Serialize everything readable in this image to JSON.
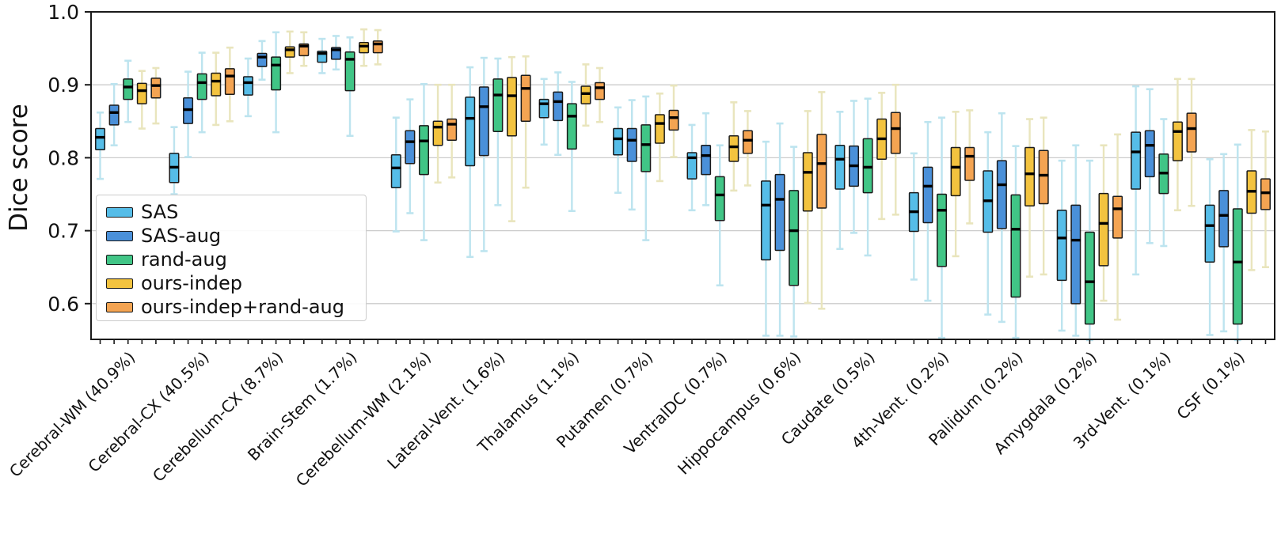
{
  "chart_data": {
    "type": "boxplot",
    "title": "",
    "ylabel": "Dice score",
    "xlabel": "",
    "ylim": [
      0.551,
      1.0
    ],
    "yticks": [
      {
        "label": "1.0",
        "value": 1.0
      },
      {
        "label": "0.9",
        "value": 0.9
      },
      {
        "label": "0.8",
        "value": 0.8
      },
      {
        "label": "0.7",
        "value": 0.7
      },
      {
        "label": "0.6",
        "value": 0.6
      }
    ],
    "grid": true,
    "legend_position": "lower left",
    "categories": [
      "Cerebral-WM (40.9%)",
      "Cerebral-CX (40.5%)",
      "Cerebellum-CX (8.7%)",
      "Brain-Stem (1.7%)",
      "Cerebellum-WM (2.1%)",
      "Lateral-Vent. (1.6%)",
      "Thalamus (1.1%)",
      "Putamen (0.7%)",
      "VentralDC (0.7%)",
      "Hippocampus (0.6%)",
      "Caudate (0.5%)",
      "4th-Vent. (0.2%)",
      "Pallidum (0.2%)",
      "Amygdala (0.2%)",
      "3rd-Vent. (0.1%)",
      "CSF (0.1%)"
    ],
    "box_stats_order": [
      "whisker_low",
      "q1",
      "median",
      "q3",
      "whisker_high"
    ],
    "series": [
      {
        "name": "SAS",
        "color": "#56bde8",
        "whisker_color": "#bde4ef",
        "boxes": [
          [
            0.771,
            0.811,
            0.828,
            0.84,
            0.862
          ],
          [
            0.75,
            0.766,
            0.787,
            0.806,
            0.842
          ],
          [
            0.857,
            0.886,
            0.903,
            0.911,
            0.936
          ],
          [
            0.916,
            0.931,
            0.943,
            0.946,
            0.963
          ],
          [
            0.699,
            0.759,
            0.786,
            0.804,
            0.855
          ],
          [
            0.664,
            0.789,
            0.854,
            0.883,
            0.924
          ],
          [
            0.818,
            0.855,
            0.874,
            0.88,
            0.908
          ],
          [
            0.752,
            0.804,
            0.826,
            0.84,
            0.869
          ],
          [
            0.728,
            0.771,
            0.8,
            0.807,
            0.845
          ],
          [
            0.556,
            0.66,
            0.735,
            0.768,
            0.822
          ],
          [
            0.675,
            0.757,
            0.798,
            0.817,
            0.863
          ],
          [
            0.633,
            0.699,
            0.726,
            0.752,
            0.806
          ],
          [
            0.585,
            0.698,
            0.741,
            0.782,
            0.835
          ],
          [
            0.563,
            0.632,
            0.69,
            0.728,
            0.796
          ],
          [
            0.64,
            0.757,
            0.808,
            0.835,
            0.898
          ],
          [
            0.557,
            0.657,
            0.707,
            0.735,
            0.798
          ]
        ]
      },
      {
        "name": "SAS-aug",
        "color": "#4a90d9",
        "whisker_color": "#bde4ef",
        "boxes": [
          [
            0.817,
            0.845,
            0.862,
            0.872,
            0.901
          ],
          [
            0.801,
            0.847,
            0.866,
            0.882,
            0.918
          ],
          [
            0.907,
            0.925,
            0.938,
            0.943,
            0.96
          ],
          [
            0.921,
            0.935,
            0.948,
            0.951,
            0.967
          ],
          [
            0.724,
            0.792,
            0.822,
            0.837,
            0.88
          ],
          [
            0.672,
            0.803,
            0.87,
            0.897,
            0.937
          ],
          [
            0.804,
            0.851,
            0.877,
            0.89,
            0.917
          ],
          [
            0.729,
            0.795,
            0.824,
            0.84,
            0.879
          ],
          [
            0.735,
            0.777,
            0.803,
            0.817,
            0.861
          ],
          [
            0.556,
            0.673,
            0.743,
            0.777,
            0.847
          ],
          [
            0.697,
            0.761,
            0.789,
            0.816,
            0.878
          ],
          [
            0.604,
            0.711,
            0.761,
            0.787,
            0.849
          ],
          [
            0.575,
            0.703,
            0.763,
            0.796,
            0.861
          ],
          [
            0.556,
            0.6,
            0.687,
            0.735,
            0.817
          ],
          [
            0.683,
            0.774,
            0.817,
            0.837,
            0.894
          ],
          [
            0.562,
            0.678,
            0.721,
            0.755,
            0.805
          ]
        ]
      },
      {
        "name": "rand-aug",
        "color": "#41c586",
        "whisker_color": "#bde4ef",
        "boxes": [
          [
            0.849,
            0.88,
            0.897,
            0.908,
            0.933
          ],
          [
            0.835,
            0.88,
            0.903,
            0.915,
            0.944
          ],
          [
            0.835,
            0.893,
            0.927,
            0.938,
            0.972
          ],
          [
            0.83,
            0.892,
            0.935,
            0.945,
            0.965
          ],
          [
            0.687,
            0.777,
            0.823,
            0.844,
            0.901
          ],
          [
            0.735,
            0.836,
            0.886,
            0.908,
            0.936
          ],
          [
            0.727,
            0.812,
            0.857,
            0.874,
            0.904
          ],
          [
            0.687,
            0.781,
            0.818,
            0.845,
            0.884
          ],
          [
            0.625,
            0.714,
            0.749,
            0.774,
            0.817
          ],
          [
            0.555,
            0.625,
            0.7,
            0.755,
            0.815
          ],
          [
            0.666,
            0.752,
            0.787,
            0.826,
            0.881
          ],
          [
            0.553,
            0.651,
            0.728,
            0.75,
            0.855
          ],
          [
            0.553,
            0.609,
            0.702,
            0.749,
            0.816
          ],
          [
            0.55,
            0.572,
            0.63,
            0.698,
            0.796
          ],
          [
            0.679,
            0.751,
            0.779,
            0.805,
            0.853
          ],
          [
            0.55,
            0.572,
            0.657,
            0.73,
            0.818
          ]
        ]
      },
      {
        "name": "ours-indep",
        "color": "#f3c33f",
        "whisker_color": "#e9e5bd",
        "boxes": [
          [
            0.84,
            0.874,
            0.892,
            0.902,
            0.919
          ],
          [
            0.845,
            0.885,
            0.905,
            0.916,
            0.944
          ],
          [
            0.916,
            0.938,
            0.948,
            0.952,
            0.973
          ],
          [
            0.926,
            0.944,
            0.953,
            0.958,
            0.976
          ],
          [
            0.766,
            0.817,
            0.842,
            0.85,
            0.9
          ],
          [
            0.713,
            0.83,
            0.885,
            0.91,
            0.938
          ],
          [
            0.844,
            0.874,
            0.888,
            0.898,
            0.928
          ],
          [
            0.768,
            0.82,
            0.847,
            0.859,
            0.888
          ],
          [
            0.755,
            0.795,
            0.815,
            0.83,
            0.876
          ],
          [
            0.601,
            0.727,
            0.78,
            0.807,
            0.864
          ],
          [
            0.716,
            0.798,
            0.826,
            0.853,
            0.889
          ],
          [
            0.665,
            0.748,
            0.787,
            0.814,
            0.863
          ],
          [
            0.637,
            0.734,
            0.778,
            0.814,
            0.853
          ],
          [
            0.604,
            0.652,
            0.71,
            0.751,
            0.817
          ],
          [
            0.728,
            0.796,
            0.836,
            0.849,
            0.908
          ],
          [
            0.646,
            0.724,
            0.754,
            0.782,
            0.838
          ]
        ]
      },
      {
        "name": "ours-indep+rand-aug",
        "color": "#f4a452",
        "whisker_color": "#e9e5bd",
        "boxes": [
          [
            0.847,
            0.882,
            0.899,
            0.909,
            0.923
          ],
          [
            0.85,
            0.887,
            0.912,
            0.922,
            0.951
          ],
          [
            0.926,
            0.94,
            0.953,
            0.956,
            0.972
          ],
          [
            0.928,
            0.944,
            0.956,
            0.96,
            0.975
          ],
          [
            0.773,
            0.824,
            0.846,
            0.853,
            0.9
          ],
          [
            0.759,
            0.85,
            0.895,
            0.913,
            0.939
          ],
          [
            0.849,
            0.88,
            0.896,
            0.903,
            0.923
          ],
          [
            0.801,
            0.838,
            0.855,
            0.865,
            0.899
          ],
          [
            0.762,
            0.806,
            0.824,
            0.837,
            0.864
          ],
          [
            0.593,
            0.731,
            0.792,
            0.832,
            0.89
          ],
          [
            0.722,
            0.806,
            0.84,
            0.862,
            0.9
          ],
          [
            0.71,
            0.769,
            0.802,
            0.814,
            0.865
          ],
          [
            0.64,
            0.737,
            0.776,
            0.81,
            0.855
          ],
          [
            0.578,
            0.69,
            0.73,
            0.747,
            0.832
          ],
          [
            0.734,
            0.808,
            0.84,
            0.861,
            0.908
          ],
          [
            0.65,
            0.729,
            0.752,
            0.771,
            0.836
          ]
        ]
      }
    ],
    "style": {
      "median_color": "#000000",
      "box_edge_color": "#1a1a1a",
      "grid_color": "#cccccc",
      "spine_color": "#1a1a1a",
      "tick_color": "#1a1a1a"
    }
  }
}
